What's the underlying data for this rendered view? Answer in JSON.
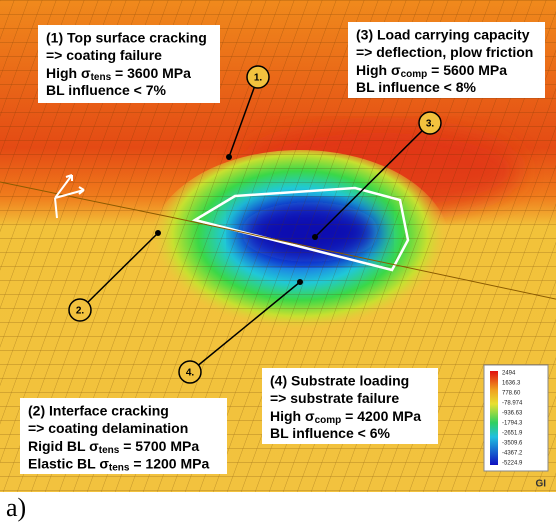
{
  "annotations": [
    {
      "callout": "1.",
      "lines": [
        "(1) Top surface cracking",
        "=> coating failure",
        {
          "pre": "High σ",
          "sub": "tens",
          "post": " = 3600 MPa"
        },
        "BL influence < 7%"
      ]
    },
    {
      "callout": "2.",
      "lines": [
        "(2) Interface cracking",
        "=> coating delamination",
        {
          "pre": "Rigid BL σ",
          "sub": "tens",
          "post": " = 5700 MPa"
        },
        {
          "pre": "Elastic BL σ",
          "sub": "tens",
          "post": " = 1200 MPa"
        }
      ]
    },
    {
      "callout": "3.",
      "lines": [
        "(3) Load carrying capacity",
        "=> deflection, plow friction",
        {
          "pre": "High σ",
          "sub": "comp",
          "post": " = 5600 MPa"
        },
        "BL influence < 8%"
      ]
    },
    {
      "callout": "4.",
      "lines": [
        "(4) Substrate loading",
        "=> substrate failure",
        {
          "pre": "High σ",
          "sub": "comp",
          "post": " = 4200 MPa"
        },
        "BL influence < 6%"
      ]
    }
  ],
  "legend": [
    "2494",
    "1636.3",
    "778.60",
    "-78.974",
    "-936.63",
    "-1794.3",
    "-2651.9",
    "-3509.6",
    "-4367.2",
    "-5224.9"
  ],
  "corner_logo": "GI",
  "panel_label": "a)"
}
